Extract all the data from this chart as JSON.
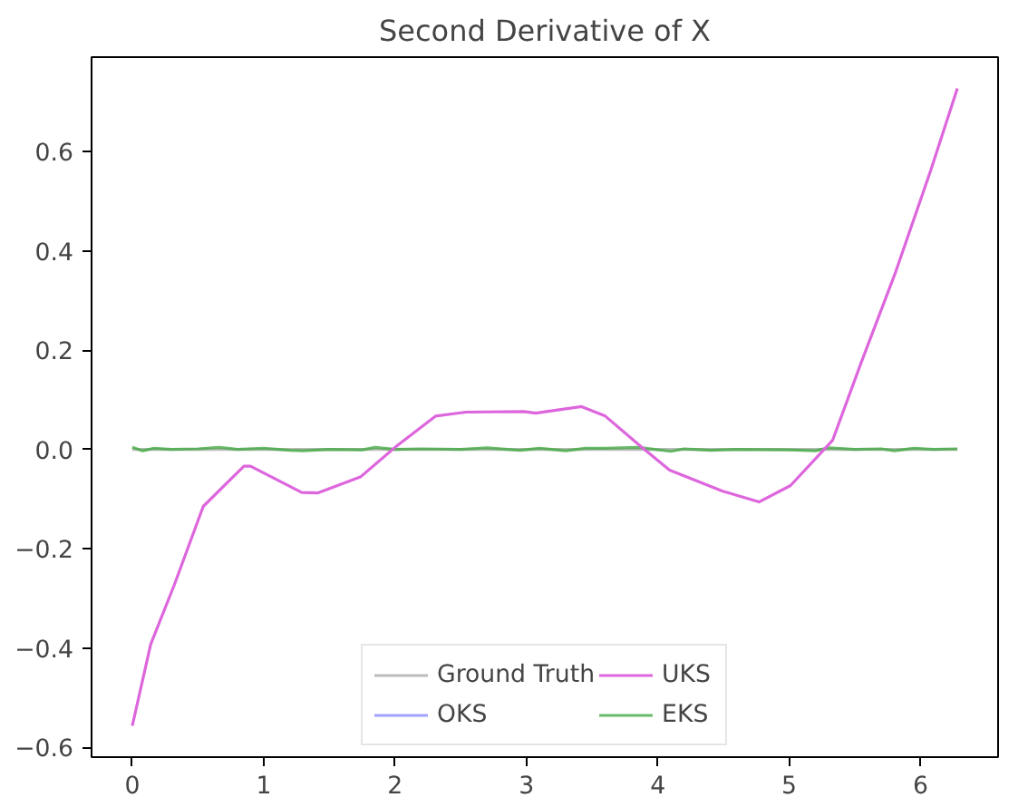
{
  "chart_data": {
    "type": "line",
    "title": "Second Derivative of X",
    "xlim": [
      -0.31,
      6.59
    ],
    "ylim": [
      -0.62,
      0.79
    ],
    "xticks": [
      0,
      1,
      2,
      3,
      4,
      5,
      6
    ],
    "yticks": [
      {
        "value": -0.6,
        "label": "−0.6"
      },
      {
        "value": -0.4,
        "label": "−0.4"
      },
      {
        "value": -0.2,
        "label": "−0.2"
      },
      {
        "value": 0,
        "label": "0.0"
      },
      {
        "value": 0.2,
        "label": "0.2"
      },
      {
        "value": 0.4,
        "label": "0.4"
      },
      {
        "value": 0.6,
        "label": "0.6"
      }
    ],
    "grid": false,
    "legend": "bottom",
    "line_style": "solid",
    "marker": "none",
    "series": [
      {
        "name": "Ground Truth",
        "color": "#a0a0a0",
        "x": [
          0,
          6.28
        ],
        "values": [
          0,
          0
        ]
      },
      {
        "name": "OKS",
        "color": "#5555ff",
        "values": [
          null
        ]
      },
      {
        "name": "UKS",
        "color": "#dd66dd",
        "x": [
          0,
          0.14,
          0.32,
          0.54,
          0.85,
          0.9,
          1.29,
          1.41,
          1.74,
          2.0,
          2.31,
          2.54,
          2.98,
          3.07,
          3.42,
          3.6,
          3.87,
          4.09,
          4.49,
          4.77,
          5.01,
          5.33,
          5.55,
          5.81,
          6.08,
          6.28
        ],
        "values": [
          -0.557,
          -0.393,
          -0.273,
          -0.115,
          -0.034,
          -0.034,
          -0.087,
          -0.088,
          -0.055,
          0.004,
          0.067,
          0.075,
          0.076,
          0.073,
          0.086,
          0.067,
          0.006,
          -0.042,
          -0.084,
          -0.106,
          -0.073,
          0.018,
          0.176,
          0.357,
          0.564,
          0.727
        ]
      },
      {
        "name": "EKS",
        "color": "#44aa44",
        "x": [
          0,
          0.08,
          0.16,
          0.3,
          0.5,
          0.66,
          0.8,
          1.0,
          1.2,
          1.3,
          1.5,
          1.75,
          1.85,
          2.0,
          2.2,
          2.5,
          2.7,
          2.95,
          3.1,
          3.3,
          3.45,
          3.6,
          3.85,
          4.1,
          4.2,
          4.4,
          4.6,
          5.0,
          5.2,
          5.3,
          5.5,
          5.7,
          5.8,
          5.95,
          6.1,
          6.28
        ],
        "values": [
          0.004,
          -0.003,
          0.002,
          0.0,
          0.001,
          0.004,
          0.0,
          0.002,
          -0.002,
          -0.003,
          0.0,
          -0.001,
          0.004,
          0.0,
          0.001,
          0.0,
          0.003,
          -0.002,
          0.002,
          -0.003,
          0.002,
          0.002,
          0.004,
          -0.004,
          0.001,
          -0.002,
          0.0,
          -0.001,
          -0.003,
          0.003,
          0.0,
          0.001,
          -0.003,
          0.002,
          0.0,
          0.001
        ]
      }
    ]
  }
}
